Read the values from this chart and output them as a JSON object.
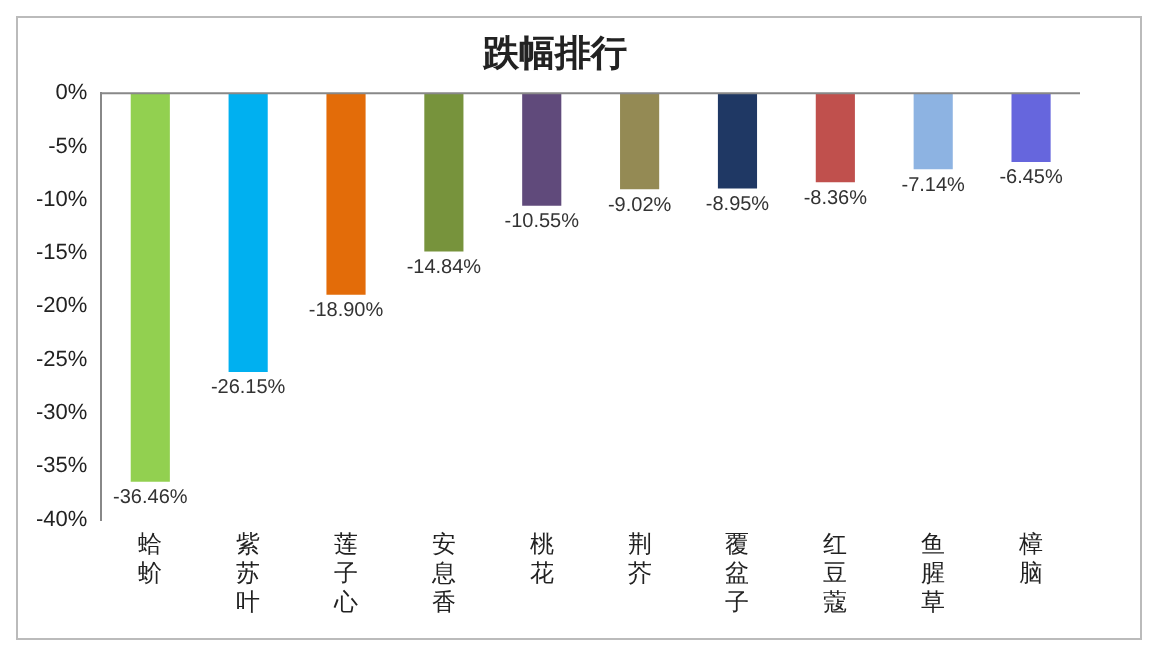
{
  "chart_data": {
    "type": "bar",
    "title": "跌幅排行",
    "categories": [
      "蛤蚧",
      "紫苏叶",
      "莲子心",
      "安息香",
      "桃花",
      "荆芥",
      "覆盆子",
      "红豆蔻",
      "鱼腥草",
      "樟脑"
    ],
    "values": [
      -36.46,
      -26.15,
      -18.9,
      -14.84,
      -10.55,
      -9.02,
      -8.95,
      -8.36,
      -7.14,
      -6.45
    ],
    "colors": [
      "#92d050",
      "#00b0f0",
      "#e36c09",
      "#77933c",
      "#604a7b",
      "#948a54",
      "#1f3864",
      "#c0504d",
      "#8db3e2",
      "#6666dd"
    ],
    "value_labels": [
      "-36.46%",
      "-26.15%",
      "-18.90%",
      "-14.84%",
      "-10.55%",
      "-9.02%",
      "-8.95%",
      "-8.36%",
      "-7.14%",
      "-6.45%"
    ],
    "ylim": [
      -40,
      0
    ],
    "yticks": [
      {
        "value": 0,
        "label": "0%"
      },
      {
        "value": -5,
        "label": "-5%"
      },
      {
        "value": -10,
        "label": "-10%"
      },
      {
        "value": -15,
        "label": "-15%"
      },
      {
        "value": -20,
        "label": "-20%"
      },
      {
        "value": -25,
        "label": "-25%"
      },
      {
        "value": -30,
        "label": "-30%"
      },
      {
        "value": -35,
        "label": "-35%"
      },
      {
        "value": -40,
        "label": "-40%"
      }
    ],
    "grid": false,
    "legend": false
  }
}
